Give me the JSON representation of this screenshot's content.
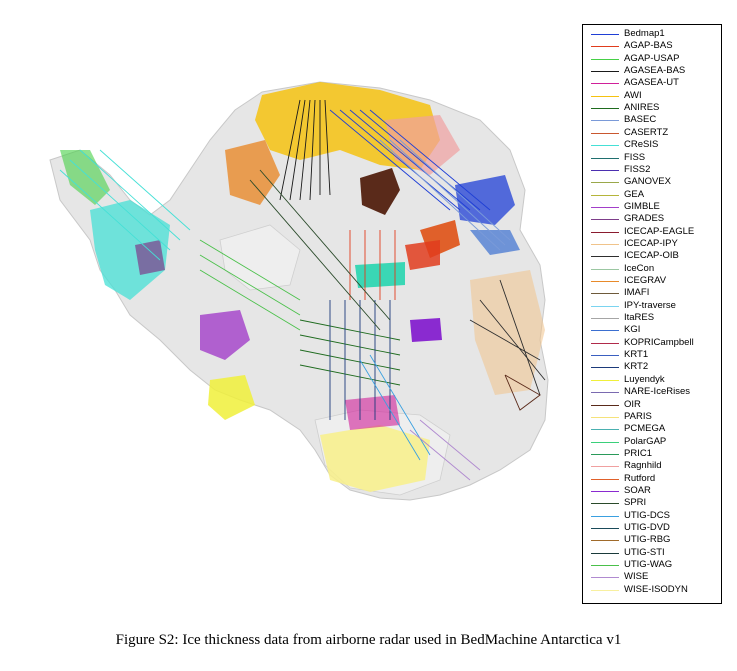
{
  "legend": {
    "items": [
      {
        "label": "Bedmap1",
        "color": "#1f3fd6"
      },
      {
        "label": "AGAP-BAS",
        "color": "#e03c1d"
      },
      {
        "label": "AGAP-USAP",
        "color": "#46d046"
      },
      {
        "label": "AGASEA-BAS",
        "color": "#1a1a1a"
      },
      {
        "label": "AGASEA-UT",
        "color": "#d0209a"
      },
      {
        "label": "AWI",
        "color": "#f5c211"
      },
      {
        "label": "ANIRES",
        "color": "#1e6b1e"
      },
      {
        "label": "BASEC",
        "color": "#7a9ad8"
      },
      {
        "label": "CASERTZ",
        "color": "#c9572f"
      },
      {
        "label": "CReSIS",
        "color": "#45e0d6"
      },
      {
        "label": "FISS",
        "color": "#1f6f6f"
      },
      {
        "label": "FISS2",
        "color": "#4b2fb0"
      },
      {
        "label": "GANOVEX",
        "color": "#9aa84a"
      },
      {
        "label": "GEA",
        "color": "#b5b53a"
      },
      {
        "label": "GIMBLE",
        "color": "#a23ec9"
      },
      {
        "label": "GRADES",
        "color": "#7d3d8a"
      },
      {
        "label": "ICECAP-EAGLE",
        "color": "#8a1b2e"
      },
      {
        "label": "ICECAP-IPY",
        "color": "#f0c38a"
      },
      {
        "label": "ICECAP-OIB",
        "color": "#2e2e2e"
      },
      {
        "label": "IceCon",
        "color": "#9bc7a2"
      },
      {
        "label": "ICEGRAV",
        "color": "#e88a2a"
      },
      {
        "label": "IMAFI",
        "color": "#6e5a3a"
      },
      {
        "label": "IPY-traverse",
        "color": "#7ad4f0"
      },
      {
        "label": "ItaRES",
        "color": "#a5a5a5"
      },
      {
        "label": "KGI",
        "color": "#3b6fd0"
      },
      {
        "label": "KOPRICampbell",
        "color": "#b02a4a"
      },
      {
        "label": "KRT1",
        "color": "#3a5fc0"
      },
      {
        "label": "KRT2",
        "color": "#1c3a7a"
      },
      {
        "label": "Luyendyk",
        "color": "#f0f03a"
      },
      {
        "label": "NARE-IceRises",
        "color": "#7a6ab0"
      },
      {
        "label": "OIR",
        "color": "#5a2a1a"
      },
      {
        "label": "PARIS",
        "color": "#f5e27a"
      },
      {
        "label": "PCMEGA",
        "color": "#4ab0b0"
      },
      {
        "label": "PolarGAP",
        "color": "#3ad07a"
      },
      {
        "label": "PRIC1",
        "color": "#2a9a5a"
      },
      {
        "label": "Ragnhild",
        "color": "#f0a0a0"
      },
      {
        "label": "Rutford",
        "color": "#e0602a"
      },
      {
        "label": "SOAR",
        "color": "#8a2ad0"
      },
      {
        "label": "SPRI",
        "color": "#2a4a2a"
      },
      {
        "label": "UTIG-DCS",
        "color": "#3aa0e0"
      },
      {
        "label": "UTIG-DVD",
        "color": "#1a4a5a"
      },
      {
        "label": "UTIG-RBG",
        "color": "#a06a2a"
      },
      {
        "label": "UTIG-STI",
        "color": "#1a3a3a"
      },
      {
        "label": "UTIG-WAG",
        "color": "#4ac04a"
      },
      {
        "label": "WISE",
        "color": "#b08ad0"
      },
      {
        "label": "WISE-ISODYN",
        "color": "#f8f0a0"
      }
    ]
  },
  "caption": "Figure S2: Ice thickness data from airborne radar used in BedMachine Antarctica v1"
}
